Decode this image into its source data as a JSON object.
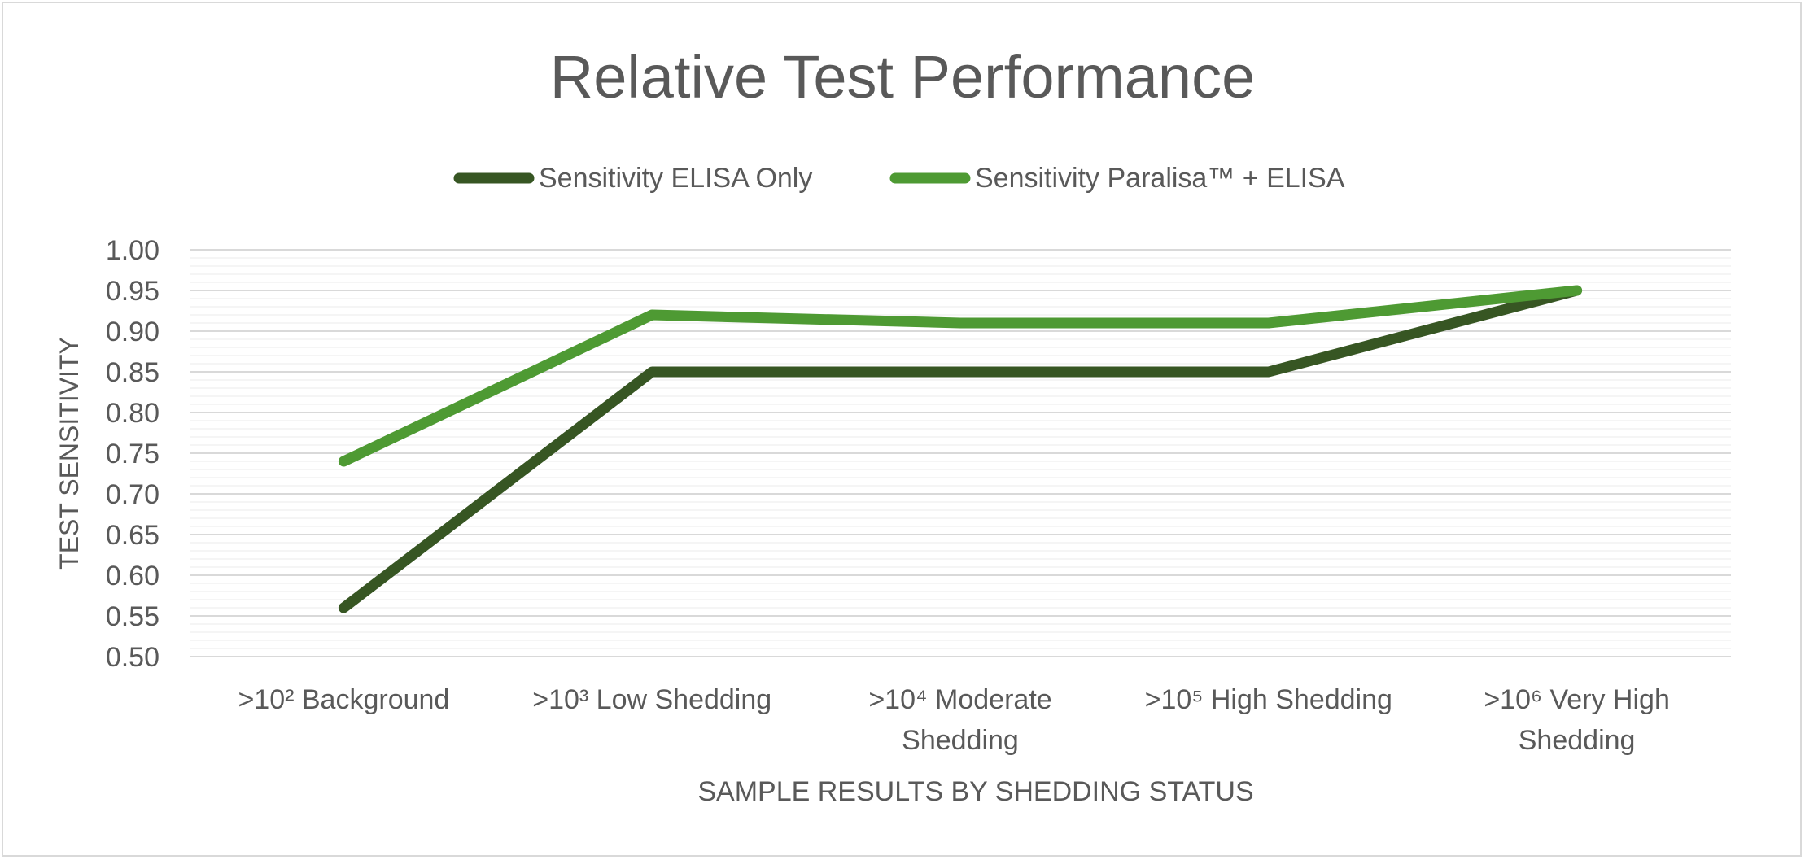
{
  "chart_data": {
    "type": "line",
    "title": "Relative Test Performance",
    "xlabel": "SAMPLE RESULTS BY SHEDDING STATUS",
    "ylabel": "TEST SENSITIVITY",
    "categories": [
      ">10² Background",
      ">10³ Low Shedding",
      ">10⁴ Moderate Shedding",
      ">10⁵ High Shedding",
      ">10⁶ Very High Shedding"
    ],
    "category_lines": [
      [
        ">10² Background"
      ],
      [
        ">10³ Low Shedding"
      ],
      [
        ">10⁴ Moderate",
        "Shedding"
      ],
      [
        ">10⁵ High Shedding"
      ],
      [
        ">10⁶ Very High",
        "Shedding"
      ]
    ],
    "series": [
      {
        "name": "Sensitivity ELISA Only",
        "values": [
          0.56,
          0.85,
          0.85,
          0.85,
          0.95
        ],
        "color": "#375623"
      },
      {
        "name": "Sensitivity Paralisa™ + ELISA",
        "values": [
          0.74,
          0.92,
          0.91,
          0.91,
          0.95
        ],
        "color": "#4e9a33"
      }
    ],
    "ylim": [
      0.5,
      1.0
    ],
    "yticks": [
      "0.50",
      "0.55",
      "0.60",
      "0.65",
      "0.70",
      "0.75",
      "0.80",
      "0.85",
      "0.90",
      "0.95",
      "1.00"
    ],
    "grid": true,
    "legend_position": "top",
    "colors": {
      "text": "#595959",
      "major_grid": "#d9d9d9",
      "minor_grid": "#efefef",
      "border": "#d9d9d9"
    }
  }
}
